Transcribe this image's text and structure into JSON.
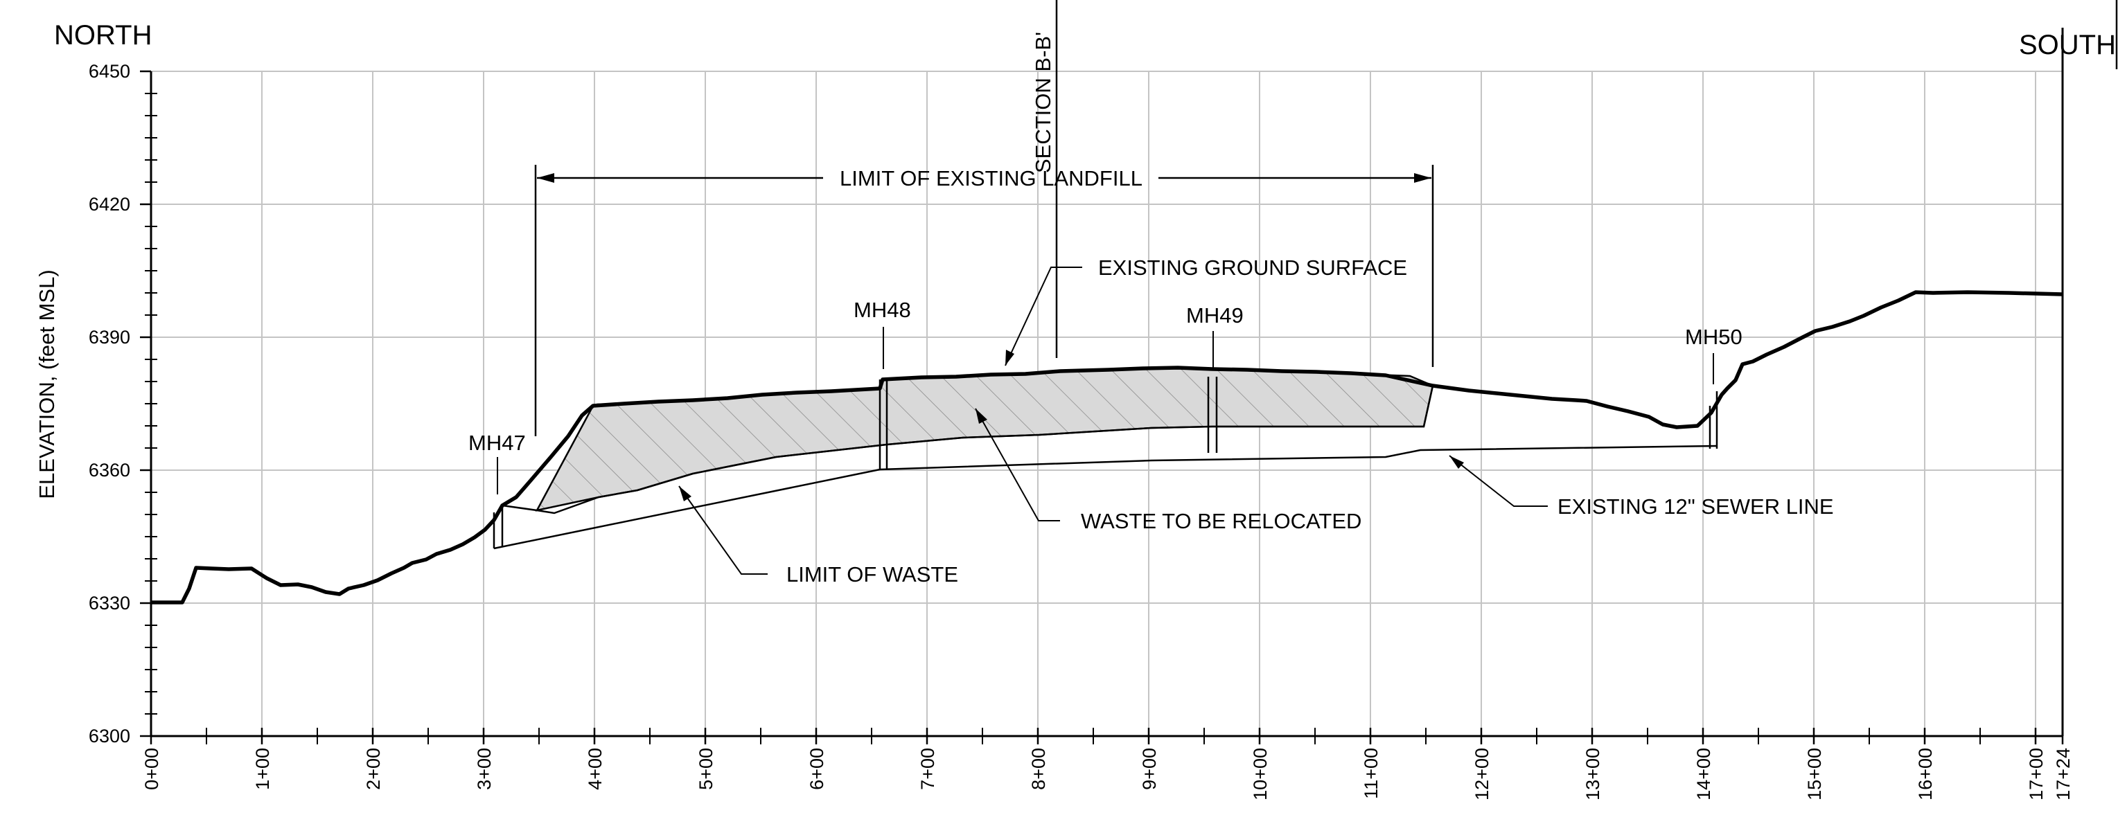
{
  "header": {
    "north_label": "NORTH",
    "south_label": "SOUTH"
  },
  "axis": {
    "y_label": "ELEVATION, (feet MSL)",
    "y_ticks": [
      "6450",
      "6420",
      "6390",
      "6360",
      "6330",
      "6300"
    ],
    "x_ticks": [
      "0+00",
      "1+00",
      "2+00",
      "3+00",
      "4+00",
      "5+00",
      "6+00",
      "7+00",
      "8+00",
      "9+00",
      "10+00",
      "11+00",
      "12+00",
      "13+00",
      "14+00",
      "15+00",
      "16+00",
      "17+00",
      "17+24"
    ]
  },
  "annotations": {
    "section_label": "SECTION B-B'",
    "landfill_limit": "LIMIT OF EXISTING LANDFILL",
    "ground_surface": "EXISTING GROUND SURFACE",
    "waste_relocated": "WASTE TO BE RELOCATED",
    "limit_of_waste": "LIMIT OF WASTE",
    "sewer_line": "EXISTING 12\" SEWER LINE"
  },
  "manholes": [
    {
      "id": "MH47",
      "station": "3+12"
    },
    {
      "id": "MH48",
      "station": "6+60"
    },
    {
      "id": "MH49",
      "station": "9+58"
    },
    {
      "id": "MH50",
      "station": "14+07"
    }
  ],
  "colors": {
    "hatch_fill": "#d9d9d9",
    "grid": "#c4c4c4",
    "line": "#000000"
  }
}
